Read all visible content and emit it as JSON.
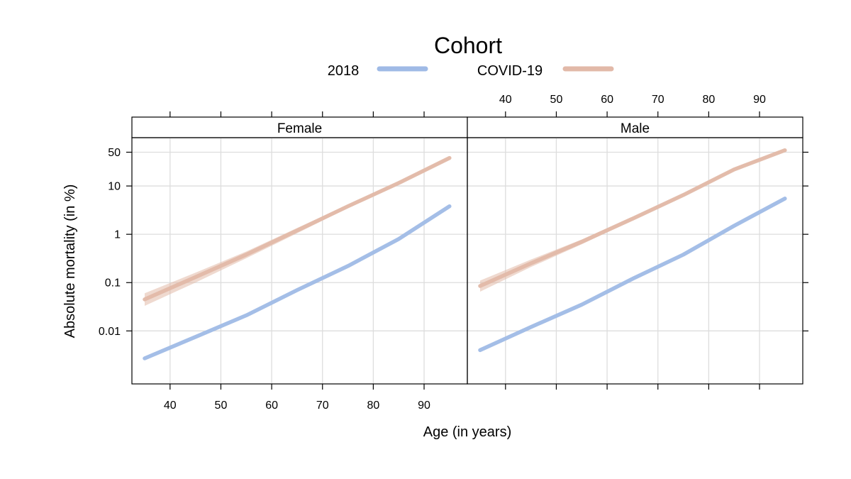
{
  "chart_data": {
    "type": "line",
    "legend": {
      "title": "Cohort",
      "placement": "top",
      "entries": [
        {
          "name": "2018",
          "color": "#9fbae6"
        },
        {
          "name": "COVID-19",
          "color": "#e2b9a8"
        }
      ]
    },
    "xlabel": "Age (in years)",
    "ylabel": "Absolute mortality (in %)",
    "x_ticks": [
      40,
      50,
      60,
      70,
      80,
      90
    ],
    "xlim": [
      35,
      96
    ],
    "y_scale": "log",
    "y_ticks": [
      {
        "value": 0.01,
        "label": "0.01"
      },
      {
        "value": 0.1,
        "label": "0.1"
      },
      {
        "value": 1,
        "label": "1"
      },
      {
        "value": 10,
        "label": "10"
      },
      {
        "value": 50,
        "label": "50"
      }
    ],
    "ylim": [
      0.0008,
      100
    ],
    "grid": true,
    "panels": [
      {
        "name": "Female",
        "series": [
          {
            "name": "2018",
            "x": [
              35,
              45,
              55,
              65,
              75,
              85,
              95
            ],
            "values": [
              0.0027,
              0.0075,
              0.021,
              0.07,
              0.22,
              0.8,
              3.8
            ]
          },
          {
            "name": "COVID-19",
            "x": [
              35,
              45,
              55,
              65,
              75,
              85,
              95
            ],
            "values": [
              0.045,
              0.13,
              0.38,
              1.2,
              3.8,
              11.5,
              38
            ],
            "lower": [
              0.033,
              0.1,
              0.32,
              1.05,
              3.5,
              10.8,
              36
            ],
            "upper": [
              0.06,
              0.16,
              0.44,
              1.35,
              4.1,
              12.2,
              40
            ]
          }
        ]
      },
      {
        "name": "Male",
        "series": [
          {
            "name": "2018",
            "x": [
              35,
              45,
              55,
              65,
              75,
              85,
              95
            ],
            "values": [
              0.004,
              0.012,
              0.035,
              0.12,
              0.38,
              1.5,
              5.5
            ]
          },
          {
            "name": "COVID-19",
            "x": [
              35,
              45,
              55,
              65,
              75,
              85,
              95
            ],
            "values": [
              0.085,
              0.25,
              0.7,
              2.1,
              6.5,
              22,
              55
            ],
            "lower": [
              0.065,
              0.21,
              0.62,
              1.95,
              6.2,
              21,
              53
            ],
            "upper": [
              0.11,
              0.3,
              0.78,
              2.3,
              6.9,
              23.5,
              58
            ]
          }
        ]
      }
    ]
  }
}
